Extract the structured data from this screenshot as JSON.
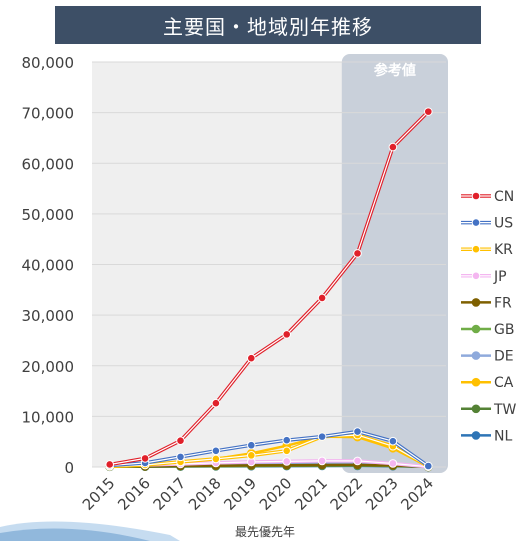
{
  "header": {
    "title": "主要国・地域別年推移"
  },
  "colors": {
    "title_bg": "#3d4f66",
    "plot_bg": "#efefef",
    "reference_shade": "#c9d0da"
  },
  "chart_data": {
    "type": "line",
    "title": "主要国・地域別年推移",
    "xlabel": "最先優先年",
    "ylabel": "",
    "x": [
      "2015",
      "2016",
      "2017",
      "2018",
      "2019",
      "2020",
      "2021",
      "2022",
      "2023",
      "2024"
    ],
    "ylim": [
      0,
      80000
    ],
    "yticks": [
      "0",
      "10,000",
      "20,000",
      "30,000",
      "40,000",
      "50,000",
      "60,000",
      "70,000",
      "80,000"
    ],
    "grid": true,
    "legend_position": "right",
    "reference_region": {
      "label": "参考値",
      "from": "2022",
      "to": "2024"
    },
    "series": [
      {
        "name": "CN",
        "color": "#e0202a",
        "double": true,
        "values": [
          500,
          1700,
          5200,
          12600,
          21500,
          26200,
          33400,
          42200,
          63200,
          70200
        ]
      },
      {
        "name": "US",
        "color": "#4472c4",
        "double": true,
        "values": [
          300,
          800,
          2000,
          3200,
          4300,
          5300,
          6000,
          7000,
          5100,
          200
        ]
      },
      {
        "name": "KR",
        "color": "#ffc000",
        "double": true,
        "values": [
          100,
          400,
          1000,
          1600,
          2300,
          3200,
          6000,
          6300,
          4100,
          100
        ]
      },
      {
        "name": "JP",
        "color": "#f4b6f0",
        "double": true,
        "values": [
          250,
          400,
          600,
          800,
          1000,
          1100,
          1200,
          1200,
          700,
          50
        ]
      },
      {
        "name": "FR",
        "color": "#7f6000",
        "double": false,
        "values": [
          80,
          120,
          200,
          260,
          320,
          360,
          400,
          420,
          300,
          20
        ]
      },
      {
        "name": "GB",
        "color": "#70ad47",
        "double": false,
        "values": [
          60,
          100,
          150,
          200,
          260,
          300,
          330,
          350,
          250,
          20
        ]
      },
      {
        "name": "DE",
        "color": "#8faadc",
        "double": false,
        "values": [
          100,
          180,
          300,
          420,
          520,
          620,
          700,
          750,
          500,
          30
        ]
      },
      {
        "name": "CA",
        "color": "#ffc000",
        "double": false,
        "values": [
          100,
          250,
          800,
          1600,
          2700,
          4200,
          6000,
          5900,
          3700,
          100
        ]
      },
      {
        "name": "TW",
        "color": "#548235",
        "double": false,
        "values": [
          50,
          80,
          120,
          160,
          200,
          240,
          270,
          290,
          200,
          10
        ]
      },
      {
        "name": "NL",
        "color": "#2e75b6",
        "double": false,
        "values": [
          40,
          60,
          90,
          120,
          150,
          180,
          200,
          210,
          150,
          10
        ]
      }
    ]
  }
}
